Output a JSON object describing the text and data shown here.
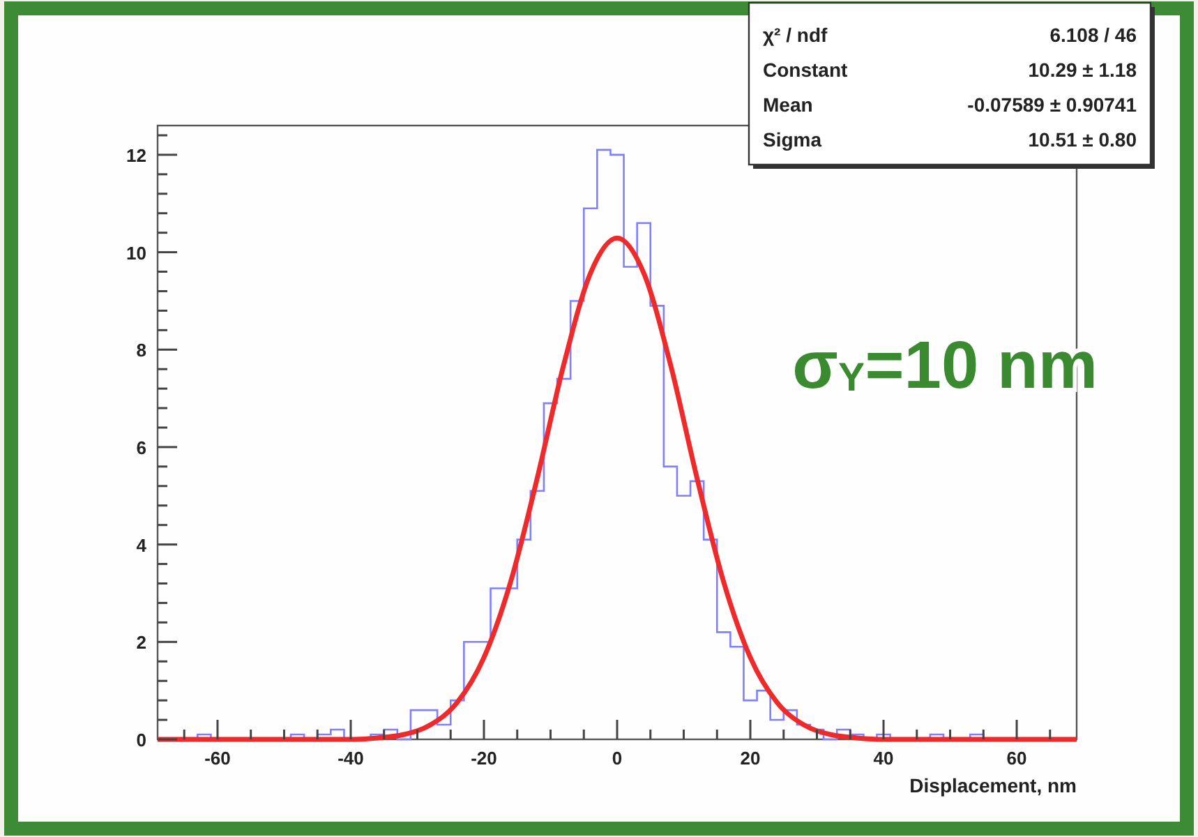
{
  "chart_data": {
    "type": "histogram",
    "xlabel": "Displacement, nm",
    "xlim": [
      -69,
      69
    ],
    "ylim": [
      0,
      12.6
    ],
    "xticks": [
      {
        "value": -65,
        "label": null
      },
      -60,
      {
        "value": -55,
        "label": null
      },
      {
        "value": -50,
        "label": null
      },
      {
        "value": -45,
        "label": null
      },
      -40,
      {
        "value": -35,
        "label": null
      },
      {
        "value": -30,
        "label": null
      },
      {
        "value": -25,
        "label": null
      },
      -20,
      {
        "value": -15,
        "label": null
      },
      {
        "value": -10,
        "label": null
      },
      {
        "value": -5,
        "label": null
      },
      0,
      {
        "value": 5,
        "label": null
      },
      {
        "value": 10,
        "label": null
      },
      {
        "value": 15,
        "label": null
      },
      20,
      {
        "value": 25,
        "label": null
      },
      {
        "value": 30,
        "label": null
      },
      {
        "value": 35,
        "label": null
      },
      40,
      {
        "value": 45,
        "label": null
      },
      {
        "value": 50,
        "label": null
      },
      {
        "value": 55,
        "label": null
      },
      60,
      {
        "value": 65,
        "label": null
      }
    ],
    "yticks": [
      0,
      {
        "value": 0.4,
        "label": null
      },
      {
        "value": 0.8,
        "label": null
      },
      {
        "value": 1.2,
        "label": null
      },
      {
        "value": 1.6,
        "label": null
      },
      2,
      {
        "value": 2.4,
        "label": null
      },
      {
        "value": 2.8,
        "label": null
      },
      {
        "value": 3.2,
        "label": null
      },
      {
        "value": 3.6,
        "label": null
      },
      4,
      {
        "value": 4.4,
        "label": null
      },
      {
        "value": 4.8,
        "label": null
      },
      {
        "value": 5.2,
        "label": null
      },
      {
        "value": 5.6,
        "label": null
      },
      6,
      {
        "value": 6.4,
        "label": null
      },
      {
        "value": 6.8,
        "label": null
      },
      {
        "value": 7.2,
        "label": null
      },
      {
        "value": 7.6,
        "label": null
      },
      8,
      {
        "value": 8.4,
        "label": null
      },
      {
        "value": 8.8,
        "label": null
      },
      {
        "value": 9.2,
        "label": null
      },
      {
        "value": 9.6,
        "label": null
      },
      10,
      {
        "value": 10.4,
        "label": null
      },
      {
        "value": 10.8,
        "label": null
      },
      {
        "value": 11.2,
        "label": null
      },
      {
        "value": 11.6,
        "label": null
      },
      12,
      {
        "value": 12.4,
        "label": null
      }
    ],
    "bins": [
      -69,
      -67,
      -65,
      -63,
      -61,
      -59,
      -57,
      -55,
      -53,
      -51,
      -49,
      -47,
      -45,
      -43,
      -41,
      -39,
      -37,
      -35,
      -33,
      -31,
      -29,
      -27,
      -25,
      -23,
      -21,
      -19,
      -17,
      -15,
      -13,
      -11,
      -9,
      -7,
      -5,
      -3,
      -1,
      1,
      3,
      5,
      7,
      9,
      11,
      13,
      15,
      17,
      19,
      21,
      23,
      25,
      27,
      29,
      31,
      33,
      35,
      37,
      39,
      41,
      43,
      45,
      47,
      49,
      51,
      53,
      55,
      57,
      59,
      61,
      63,
      65,
      67,
      69
    ],
    "series": [
      {
        "color": "#7f7fff",
        "values": [
          0,
          0,
          0,
          0.1,
          0,
          0,
          0,
          0,
          0,
          0,
          0.1,
          0,
          0.1,
          0.2,
          0,
          0,
          0.1,
          0.2,
          0,
          0.6,
          0.6,
          0.3,
          0.8,
          2.0,
          2.0,
          3.1,
          3.1,
          4.1,
          5.1,
          6.9,
          7.4,
          9.0,
          10.9,
          12.1,
          12.0,
          9.7,
          10.6,
          8.9,
          5.6,
          5.0,
          5.3,
          4.1,
          2.2,
          1.9,
          0.8,
          1.0,
          0.4,
          0.6,
          0.3,
          0.2,
          0,
          0.2,
          0.1,
          0,
          0.1,
          0,
          0,
          0,
          0.1,
          0,
          0,
          0.1,
          0,
          0,
          0,
          0,
          0,
          0,
          0
        ]
      },
      {
        "type": "line",
        "color": "#ee2a2a",
        "x": [
          -69,
          -40,
          -36,
          -32,
          -28,
          -24,
          -20,
          -16,
          -12,
          -8,
          -4,
          0,
          4,
          8,
          12,
          16,
          20,
          24,
          28,
          32,
          36,
          40,
          69
        ],
        "values": [
          0,
          0,
          0.03,
          0.1,
          0.3,
          0.76,
          1.68,
          3.23,
          5.36,
          7.7,
          9.57,
          10.29,
          9.57,
          7.7,
          5.36,
          3.23,
          1.68,
          0.76,
          0.3,
          0.1,
          0.03,
          0,
          0
        ]
      }
    ],
    "annotations": [
      "χ² / ndf",
      "6.108 / 46",
      "Constant",
      "10.29 ± 1.18",
      "Mean",
      "-0.07589 ± 0.90741",
      "Sigma",
      "10.51 ± 0.80",
      "σ$_{Y}$=10 nm"
    ],
    "grid": false
  }
}
